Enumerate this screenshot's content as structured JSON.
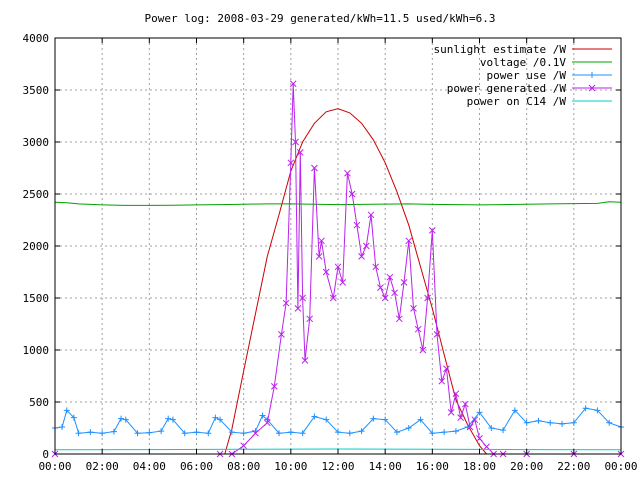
{
  "chart_data": {
    "type": "line",
    "title": "Power log: 2008-03-29 generated/kWh=11.5 used/kWh=6.3",
    "xlabel": "",
    "ylabel": "",
    "xlim": [
      0,
      24
    ],
    "ylim": [
      0,
      4000
    ],
    "grid": true,
    "legend_position": "top-right",
    "x_ticks": [
      "00:00",
      "02:00",
      "04:00",
      "06:00",
      "08:00",
      "10:00",
      "12:00",
      "14:00",
      "16:00",
      "18:00",
      "20:00",
      "22:00",
      "00:00"
    ],
    "y_ticks": [
      "0",
      "500",
      "1000",
      "1500",
      "2000",
      "2500",
      "3000",
      "3500",
      "4000"
    ],
    "series": [
      {
        "name": "sunlight estimate /W",
        "color": "#cc0000",
        "marker": "none",
        "x": [
          7.2,
          7.5,
          8,
          8.5,
          9,
          9.5,
          10,
          10.5,
          11,
          11.5,
          12,
          12.5,
          13,
          13.5,
          14,
          14.5,
          15,
          15.5,
          16,
          16.5,
          17,
          17.5,
          18,
          18.3
        ],
        "y": [
          0,
          240,
          800,
          1350,
          1900,
          2300,
          2720,
          3000,
          3180,
          3290,
          3320,
          3280,
          3180,
          3020,
          2800,
          2520,
          2200,
          1800,
          1400,
          960,
          520,
          280,
          80,
          0
        ]
      },
      {
        "name": "voltage /0.1V",
        "color": "#00a000",
        "marker": "none",
        "x": [
          0,
          0.5,
          1,
          1.5,
          2,
          3,
          4,
          5,
          6,
          7,
          8,
          9,
          10,
          11,
          12,
          13,
          14,
          15,
          16,
          17,
          18,
          19,
          20,
          21,
          22,
          23,
          23.5,
          24
        ],
        "y": [
          2420,
          2415,
          2405,
          2400,
          2395,
          2390,
          2390,
          2392,
          2395,
          2398,
          2402,
          2405,
          2405,
          2402,
          2398,
          2400,
          2403,
          2405,
          2400,
          2398,
          2395,
          2398,
          2402,
          2405,
          2408,
          2410,
          2425,
          2420
        ]
      },
      {
        "name": "power use /W",
        "color": "#1e90ff",
        "marker": "plus",
        "x": [
          0,
          0.3,
          0.5,
          0.8,
          1,
          1.5,
          2,
          2.5,
          2.8,
          3,
          3.5,
          4,
          4.5,
          4.8,
          5,
          5.5,
          6,
          6.5,
          6.8,
          7,
          7.5,
          8,
          8.5,
          8.8,
          9,
          9.5,
          10,
          10.5,
          11,
          11.5,
          12,
          12.5,
          13,
          13.5,
          14,
          14.5,
          15,
          15.5,
          16,
          16.5,
          17,
          17.5,
          18,
          18.5,
          19,
          19.5,
          20,
          20.5,
          21,
          21.5,
          22,
          22.5,
          23,
          23.5,
          24
        ],
        "y": [
          250,
          260,
          420,
          350,
          200,
          210,
          200,
          215,
          340,
          330,
          200,
          205,
          220,
          340,
          330,
          200,
          210,
          200,
          350,
          330,
          210,
          200,
          220,
          370,
          330,
          200,
          210,
          200,
          360,
          330,
          210,
          200,
          220,
          340,
          330,
          210,
          250,
          330,
          200,
          210,
          220,
          260,
          400,
          250,
          230,
          420,
          300,
          320,
          300,
          290,
          300,
          440,
          420,
          300,
          260
        ]
      },
      {
        "name": "power generated /W",
        "color": "#bb22ee",
        "marker": "x",
        "x": [
          0,
          7,
          7.5,
          8,
          8.5,
          9,
          9.3,
          9.6,
          9.8,
          10,
          10.1,
          10.2,
          10.3,
          10.4,
          10.5,
          10.6,
          10.8,
          11,
          11.2,
          11.3,
          11.5,
          11.8,
          12,
          12.2,
          12.4,
          12.6,
          12.8,
          13,
          13.2,
          13.4,
          13.6,
          13.8,
          14,
          14.2,
          14.4,
          14.6,
          14.8,
          15,
          15.2,
          15.4,
          15.6,
          15.8,
          16,
          16.2,
          16.4,
          16.6,
          16.8,
          17,
          17.2,
          17.4,
          17.6,
          17.8,
          18,
          18.3,
          18.6,
          19,
          20,
          22,
          24
        ],
        "y": [
          0,
          0,
          0,
          80,
          200,
          300,
          650,
          1150,
          1450,
          2800,
          3560,
          3000,
          1400,
          2900,
          1500,
          900,
          1300,
          2750,
          1900,
          2050,
          1750,
          1500,
          1800,
          1650,
          2700,
          2500,
          2200,
          1900,
          2000,
          2300,
          1800,
          1600,
          1500,
          1700,
          1550,
          1300,
          1650,
          2050,
          1400,
          1200,
          1000,
          1500,
          2150,
          1150,
          700,
          820,
          400,
          580,
          350,
          480,
          260,
          330,
          150,
          70,
          0,
          0,
          0,
          0,
          0
        ]
      },
      {
        "name": "power on C14 /W",
        "color": "#00cccc",
        "marker": "none",
        "x": [
          0,
          4,
          8,
          12,
          16,
          20,
          24
        ],
        "y": [
          40,
          42,
          45,
          48,
          45,
          42,
          40
        ]
      }
    ]
  }
}
